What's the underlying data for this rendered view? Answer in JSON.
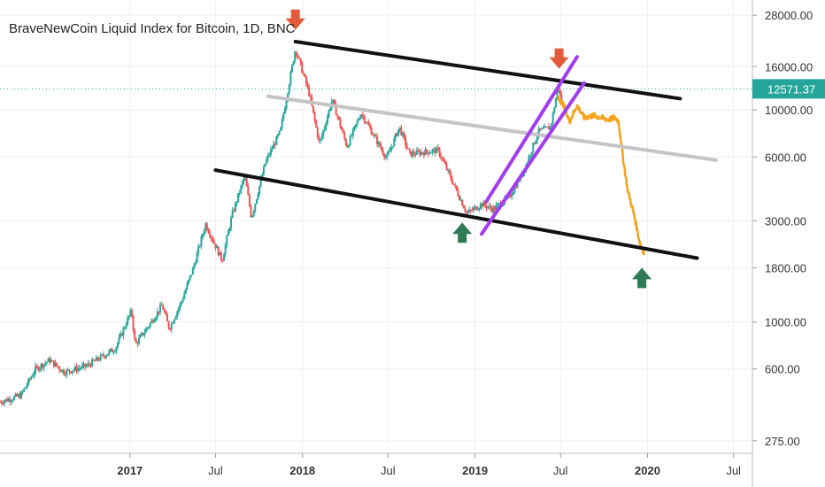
{
  "chart_data": {
    "type": "line",
    "title": "BraveNewCoin Liquid Index for Bitcoin, 1D, BNC",
    "y_scale": "log",
    "ylim": [
      240,
      33000
    ],
    "xlim": [
      "2016-04-01",
      "2020-08-10"
    ],
    "price_label": "12571.37",
    "price_line_value": 12571.37,
    "y_ticks": [
      {
        "value": 28000,
        "label": "28000.00"
      },
      {
        "value": 16000,
        "label": "16000.00"
      },
      {
        "value": 10000,
        "label": "10000.00"
      },
      {
        "value": 6000,
        "label": "6000.00"
      },
      {
        "value": 3000,
        "label": "3000.00"
      },
      {
        "value": 1800,
        "label": "1800.00"
      },
      {
        "value": 1000,
        "label": "1000.00"
      },
      {
        "value": 600,
        "label": "600.00"
      },
      {
        "value": 275,
        "label": "275.00"
      }
    ],
    "x_ticks": [
      {
        "date": "2017-01-01",
        "label": "2017",
        "bold": true
      },
      {
        "date": "2017-07-01",
        "label": "Jul",
        "bold": false
      },
      {
        "date": "2018-01-01",
        "label": "2018",
        "bold": true
      },
      {
        "date": "2018-07-01",
        "label": "Jul",
        "bold": false
      },
      {
        "date": "2019-01-01",
        "label": "2019",
        "bold": true
      },
      {
        "date": "2019-07-01",
        "label": "Jul",
        "bold": false
      },
      {
        "date": "2020-01-01",
        "label": "2020",
        "bold": true
      },
      {
        "date": "2020-07-01",
        "label": "Jul",
        "bold": false
      }
    ],
    "series": [
      {
        "kind": "candles",
        "color_up": "#26a69a",
        "color_down": "#ef5350",
        "points": [
          {
            "x": "2016-04-01",
            "y": 420
          },
          {
            "x": "2016-05-15",
            "y": 450
          },
          {
            "x": "2016-06-15",
            "y": 600
          },
          {
            "x": "2016-07-15",
            "y": 660
          },
          {
            "x": "2016-08-15",
            "y": 580
          },
          {
            "x": "2016-10-01",
            "y": 620
          },
          {
            "x": "2016-12-01",
            "y": 750
          },
          {
            "x": "2017-01-04",
            "y": 1130
          },
          {
            "x": "2017-01-12",
            "y": 780
          },
          {
            "x": "2017-02-15",
            "y": 1000
          },
          {
            "x": "2017-03-10",
            "y": 1200
          },
          {
            "x": "2017-03-25",
            "y": 930
          },
          {
            "x": "2017-04-20",
            "y": 1250
          },
          {
            "x": "2017-05-15",
            "y": 1800
          },
          {
            "x": "2017-06-10",
            "y": 2900
          },
          {
            "x": "2017-07-15",
            "y": 1950
          },
          {
            "x": "2017-08-05",
            "y": 3200
          },
          {
            "x": "2017-09-01",
            "y": 4900
          },
          {
            "x": "2017-09-15",
            "y": 3100
          },
          {
            "x": "2017-10-15",
            "y": 5700
          },
          {
            "x": "2017-11-15",
            "y": 7900
          },
          {
            "x": "2017-12-17",
            "y": 19500
          },
          {
            "x": "2018-01-15",
            "y": 12000
          },
          {
            "x": "2018-02-06",
            "y": 6900
          },
          {
            "x": "2018-03-05",
            "y": 11200
          },
          {
            "x": "2018-04-05",
            "y": 6700
          },
          {
            "x": "2018-05-05",
            "y": 9700
          },
          {
            "x": "2018-06-28",
            "y": 5900
          },
          {
            "x": "2018-07-25",
            "y": 8300
          },
          {
            "x": "2018-08-15",
            "y": 6200
          },
          {
            "x": "2018-10-15",
            "y": 6450
          },
          {
            "x": "2018-11-20",
            "y": 4300
          },
          {
            "x": "2018-12-15",
            "y": 3250
          },
          {
            "x": "2019-01-15",
            "y": 3600
          },
          {
            "x": "2019-02-08",
            "y": 3400
          },
          {
            "x": "2019-03-15",
            "y": 3900
          },
          {
            "x": "2019-04-15",
            "y": 5200
          },
          {
            "x": "2019-05-15",
            "y": 7900
          },
          {
            "x": "2019-06-10",
            "y": 8300
          },
          {
            "x": "2019-06-26",
            "y": 13000
          },
          {
            "x": "2019-07-03",
            "y": 10800
          }
        ]
      },
      {
        "kind": "projection",
        "color": "#f7a21b",
        "points": [
          {
            "x": "2019-06-26",
            "y": 11500
          },
          {
            "x": "2019-07-08",
            "y": 10500
          },
          {
            "x": "2019-07-20",
            "y": 8800
          },
          {
            "x": "2019-08-05",
            "y": 10500
          },
          {
            "x": "2019-08-20",
            "y": 9200
          },
          {
            "x": "2019-09-10",
            "y": 9400
          },
          {
            "x": "2019-10-10",
            "y": 9000
          },
          {
            "x": "2019-10-25",
            "y": 9200
          },
          {
            "x": "2019-11-01",
            "y": 8800
          },
          {
            "x": "2019-11-10",
            "y": 6000
          },
          {
            "x": "2019-11-20",
            "y": 4200
          },
          {
            "x": "2019-12-05",
            "y": 3100
          },
          {
            "x": "2019-12-15",
            "y": 2400
          },
          {
            "x": "2019-12-25",
            "y": 2100
          }
        ]
      }
    ],
    "trendlines": [
      {
        "name": "upper-channel-line",
        "color": "#111111",
        "width": 4,
        "from": {
          "x": "2017-12-17",
          "y": 21000
        },
        "to": {
          "x": "2020-03-10",
          "y": 11300
        }
      },
      {
        "name": "lower-channel-line",
        "color": "#111111",
        "width": 4,
        "from": {
          "x": "2017-07-01",
          "y": 5200
        },
        "to": {
          "x": "2020-04-15",
          "y": 2000
        }
      },
      {
        "name": "middle-channel-line",
        "color": "#c4c4c4",
        "width": 4,
        "from": {
          "x": "2017-10-20",
          "y": 11600
        },
        "to": {
          "x": "2020-05-25",
          "y": 5800
        }
      },
      {
        "name": "purple-channel-upper",
        "color": "#a23cf0",
        "width": 4,
        "from": {
          "x": "2019-01-25",
          "y": 3700
        },
        "to": {
          "x": "2019-08-05",
          "y": 17800
        }
      },
      {
        "name": "purple-channel-lower",
        "color": "#a23cf0",
        "width": 4,
        "from": {
          "x": "2019-01-15",
          "y": 2600
        },
        "to": {
          "x": "2019-08-20",
          "y": 13400
        }
      }
    ],
    "markers": [
      {
        "name": "sell-arrow-2017-top",
        "direction": "down",
        "color": "#e25b3a",
        "at": {
          "x": "2017-12-17",
          "y": 26500
        }
      },
      {
        "name": "sell-arrow-2019-top",
        "direction": "down",
        "color": "#e25b3a",
        "at": {
          "x": "2019-06-28",
          "y": 17400
        }
      },
      {
        "name": "buy-arrow-2018-bottom",
        "direction": "up",
        "color": "#2f7a55",
        "at": {
          "x": "2018-12-05",
          "y": 2650
        }
      },
      {
        "name": "buy-arrow-2019-bottom",
        "direction": "up",
        "color": "#2f7a55",
        "at": {
          "x": "2019-12-20",
          "y": 1620
        }
      }
    ]
  }
}
